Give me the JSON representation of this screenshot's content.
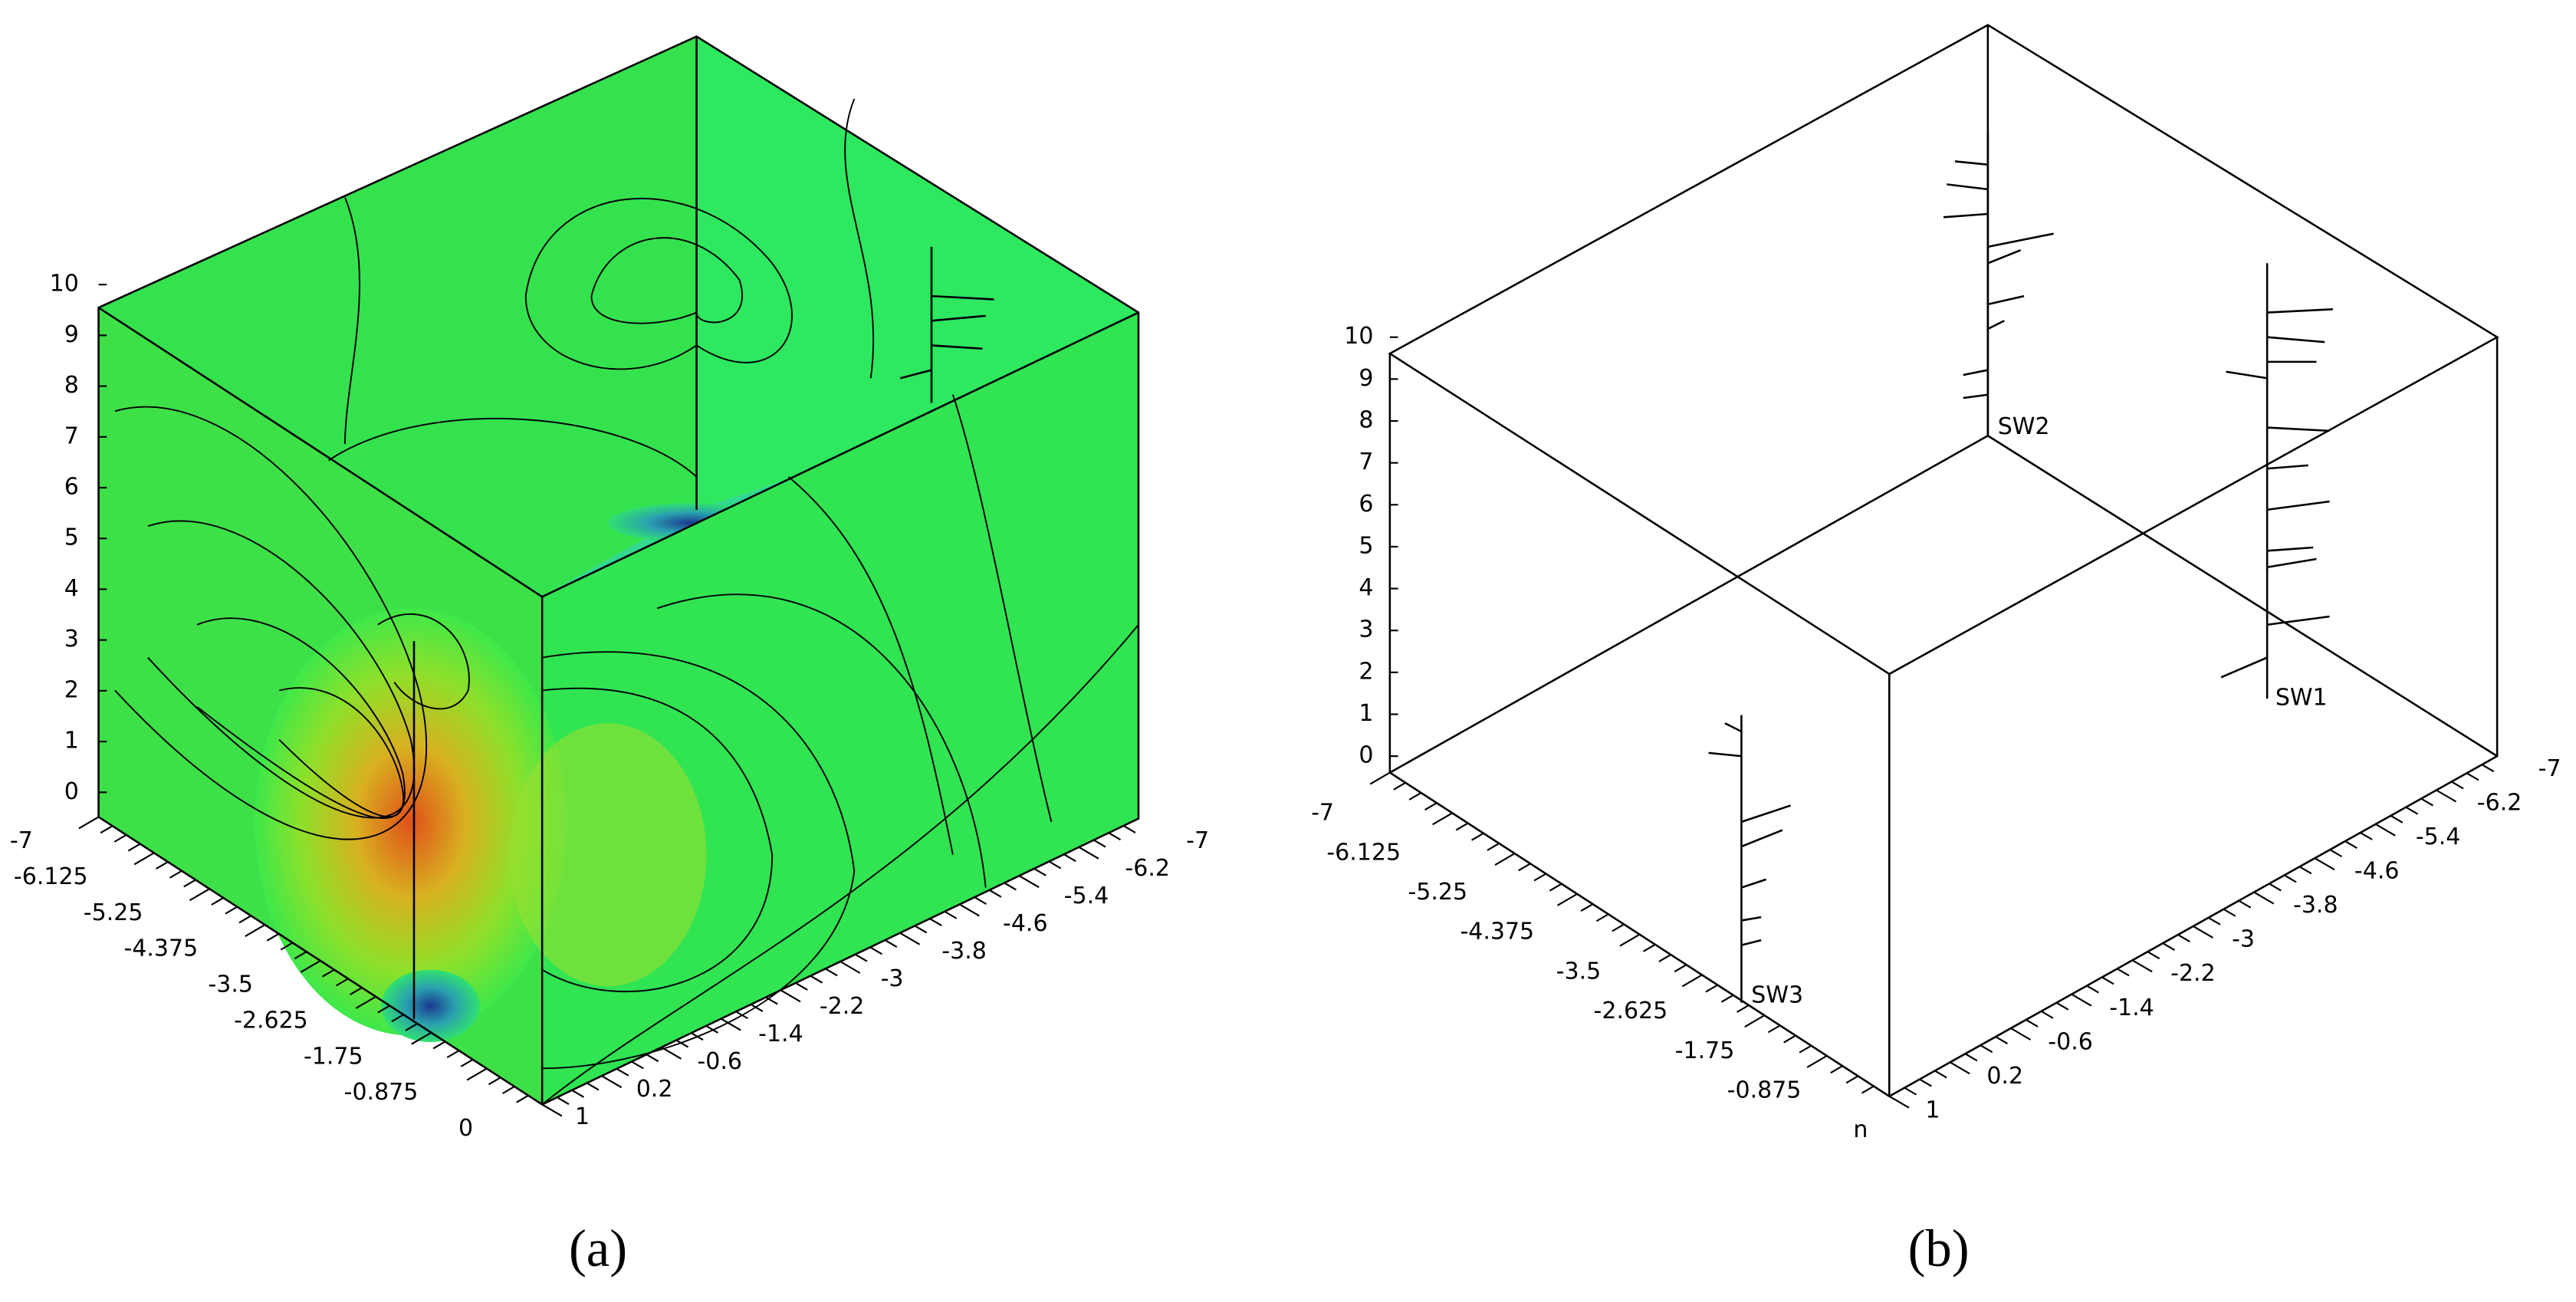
{
  "panels": [
    {
      "label": "(a)",
      "z_ticks": [
        "10",
        "9",
        "8",
        "7",
        "6",
        "5",
        "4",
        "3",
        "2",
        "1",
        "0"
      ],
      "x_ticks": [
        "-7",
        "-6.125",
        "-5.25",
        "-4.375",
        "-3.5",
        "-2.625",
        "-1.75",
        "-0.875",
        "0"
      ],
      "y_ticks": [
        "1",
        "0.2",
        "-0.6",
        "-1.4",
        "-2.2",
        "-3",
        "-3.8",
        "-4.6",
        "-5.4",
        "-6.2",
        "-7"
      ]
    },
    {
      "label": "(b)",
      "z_ticks": [
        "10",
        "9",
        "8",
        "7",
        "6",
        "5",
        "4",
        "3",
        "2",
        "1",
        "0"
      ],
      "x_ticks": [
        "-7",
        "-6.125",
        "-5.25",
        "-4.375",
        "-3.5",
        "-2.625",
        "-1.75",
        "-0.875",
        "n"
      ],
      "y_ticks": [
        "1",
        "0.2",
        "-0.6",
        "-1.4",
        "-2.2",
        "-3",
        "-3.8",
        "-4.6",
        "-5.4",
        "-6.2",
        "-7"
      ],
      "wells": [
        "SW1",
        "SW2",
        "SW3"
      ]
    }
  ]
}
